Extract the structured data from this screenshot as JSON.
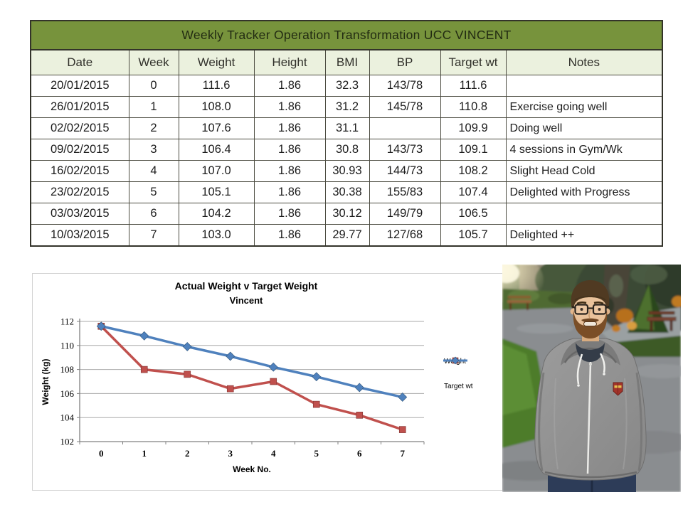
{
  "table": {
    "title": "Weekly Tracker Operation Transformation UCC VINCENT",
    "columns": [
      "Date",
      "Week",
      "Weight",
      "Height",
      "BMI",
      "BP",
      "Target wt",
      "Notes"
    ],
    "rows": [
      [
        "20/01/2015",
        "0",
        "111.6",
        "1.86",
        "32.3",
        "143/78",
        "111.6",
        ""
      ],
      [
        "26/01/2015",
        "1",
        "108.0",
        "1.86",
        "31.2",
        "145/78",
        "110.8",
        "Exercise going well"
      ],
      [
        "02/02/2015",
        "2",
        "107.6",
        "1.86",
        "31.1",
        "",
        "109.9",
        "Doing well"
      ],
      [
        "09/02/2015",
        "3",
        "106.4",
        "1.86",
        "30.8",
        "143/73",
        "109.1",
        "4 sessions in Gym/Wk"
      ],
      [
        "16/02/2015",
        "4",
        "107.0",
        "1.86",
        "30.93",
        "144/73",
        "108.2",
        "Slight Head Cold"
      ],
      [
        "23/02/2015",
        "5",
        "105.1",
        "1.86",
        "30.38",
        "155/83",
        "107.4",
        "Delighted with Progress"
      ],
      [
        "03/03/2015",
        "6",
        "104.2",
        "1.86",
        "30.12",
        "149/79",
        "106.5",
        ""
      ],
      [
        "10/03/2015",
        "7",
        "103.0",
        "1.86",
        "29.77",
        "127/68",
        "105.7",
        "Delighted ++"
      ]
    ],
    "colors": {
      "title_bg": "#77933C",
      "header_bg": "#EBF1DE",
      "border": "#33332a"
    }
  },
  "chart_data": {
    "type": "line",
    "title": "Actual Weight v Target Weight",
    "subtitle": "Vincent",
    "xlabel": "Week No.",
    "ylabel": "Weight (kg)",
    "x": [
      0,
      1,
      2,
      3,
      4,
      5,
      6,
      7
    ],
    "series": [
      {
        "name": "Weight",
        "marker": "square",
        "color": "#C0504D",
        "values": [
          111.6,
          108.0,
          107.6,
          106.4,
          107.0,
          105.1,
          104.2,
          103.0
        ]
      },
      {
        "name": "Target wt",
        "marker": "diamond",
        "color": "#4F81BD",
        "values": [
          111.6,
          110.8,
          109.9,
          109.1,
          108.2,
          107.4,
          106.5,
          105.7
        ]
      }
    ],
    "ylim": [
      102,
      112
    ],
    "yticks": [
      102,
      104,
      106,
      108,
      110,
      112
    ],
    "grid": true,
    "legend_position": "right",
    "axis_color": "#808080",
    "grid_color": "#aaaaaa"
  },
  "photo": {
    "description": "Outdoor portrait of a smiling young man with glasses and a beard, wearing a grey zip-up hoodie, standing on a park path with hedges, trees and benches"
  }
}
